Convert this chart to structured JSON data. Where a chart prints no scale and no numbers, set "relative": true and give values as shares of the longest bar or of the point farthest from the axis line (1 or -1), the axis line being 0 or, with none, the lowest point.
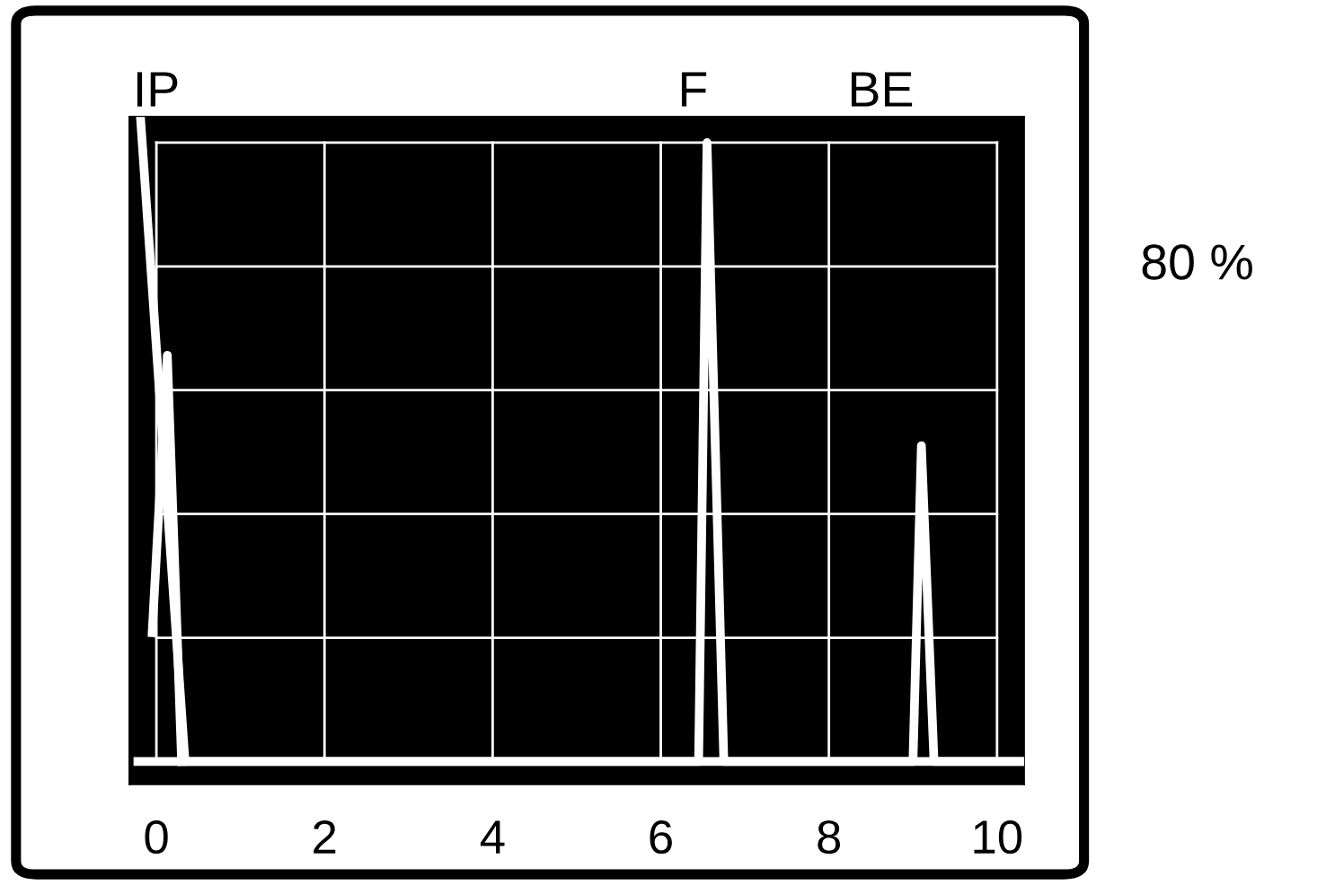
{
  "chart_data": {
    "type": "line",
    "relative": true,
    "x": [
      -0.19,
      0.34,
      6.45,
      6.55,
      6.75,
      9.0,
      9.1,
      9.25,
      10.3
    ],
    "series": [
      {
        "color": "#ffffff",
        "values": [
          1,
          0,
          0,
          0.96,
          0,
          0,
          0.49,
          0,
          0
        ]
      },
      {
        "color": "#ffffff",
        "x": [
          -0.05,
          0.13,
          0.3
        ],
        "values": [
          0.2,
          0.63,
          0
        ]
      }
    ],
    "xlim": [
      -0.32,
      10.32
    ],
    "xticks": [
      0,
      2,
      4,
      6,
      8,
      10
    ],
    "grid": true,
    "annotations": [
      "IP",
      "F",
      "BE",
      "80 %"
    ]
  }
}
